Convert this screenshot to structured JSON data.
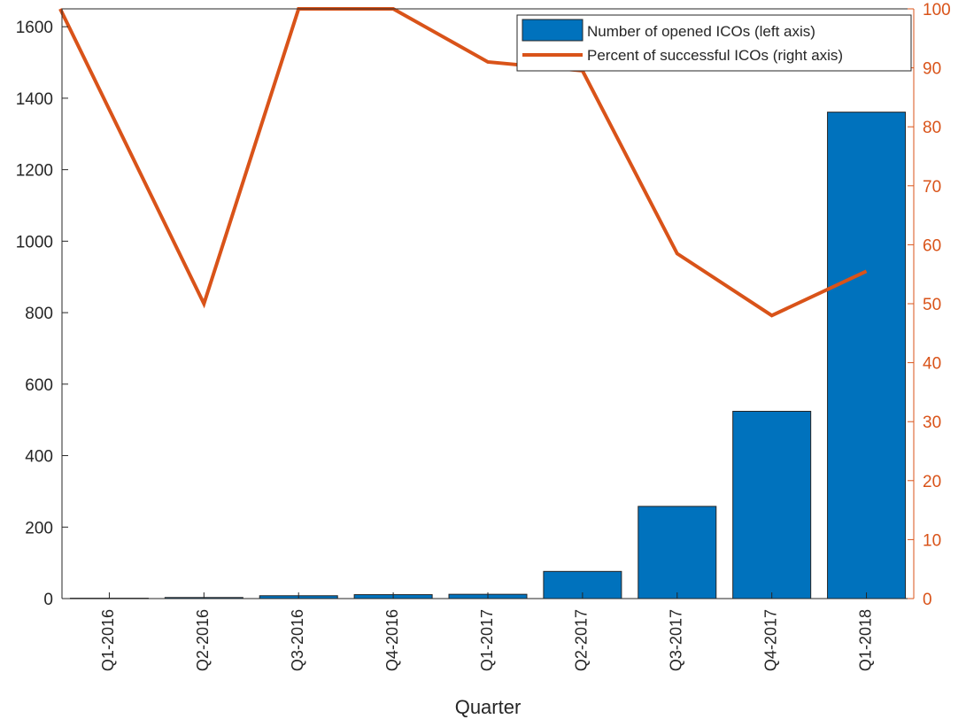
{
  "chart_data": {
    "type": "bar",
    "categories": [
      "Q1-2016",
      "Q2-2016",
      "Q3-2016",
      "Q4-2016",
      "Q1-2017",
      "Q2-2017",
      "Q3-2017",
      "Q4-2017",
      "Q1-2018"
    ],
    "xlabel": "Quarter",
    "ylabel_left": "",
    "ylabel_right": "",
    "ylim_left": [
      0,
      1650
    ],
    "ylim_right": [
      0,
      100
    ],
    "yticks_left": [
      0,
      200,
      400,
      600,
      800,
      1000,
      1200,
      1400,
      1600
    ],
    "yticks_right": [
      0,
      10,
      20,
      30,
      40,
      50,
      60,
      70,
      80,
      90,
      100
    ],
    "grid": false,
    "legend_position": "top-right",
    "series": [
      {
        "name": "Number of opened ICOs (left axis)",
        "type": "bar",
        "axis": "left",
        "color": "#0072BD",
        "values": [
          1,
          3,
          8,
          11,
          12,
          76,
          258,
          524,
          1361
        ]
      },
      {
        "name": "Percent of successful ICOs (right axis)",
        "type": "line",
        "axis": "right",
        "color": "#D95319",
        "values": [
          100,
          50,
          100,
          100,
          91,
          89.5,
          58.5,
          48,
          55.5
        ]
      }
    ],
    "axis_colors": {
      "left": "#262626",
      "right": "#D95319"
    }
  }
}
